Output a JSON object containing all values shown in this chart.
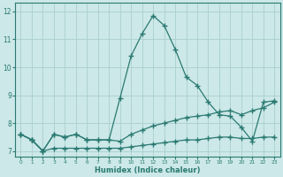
{
  "xlabel": "Humidex (Indice chaleur)",
  "x_values": [
    0,
    1,
    2,
    3,
    4,
    5,
    6,
    7,
    8,
    9,
    10,
    11,
    12,
    13,
    14,
    15,
    16,
    17,
    18,
    19,
    20,
    21,
    22,
    23
  ],
  "line1_bottom": [
    7.6,
    7.4,
    7.0,
    7.1,
    7.1,
    7.1,
    7.1,
    7.1,
    7.1,
    7.1,
    7.15,
    7.2,
    7.25,
    7.3,
    7.35,
    7.4,
    7.4,
    7.45,
    7.5,
    7.5,
    7.45,
    7.45,
    7.5,
    7.5
  ],
  "line2_mid": [
    7.6,
    7.4,
    7.0,
    7.6,
    7.5,
    7.6,
    7.4,
    7.4,
    7.4,
    7.35,
    7.6,
    7.75,
    7.9,
    8.0,
    8.1,
    8.2,
    8.25,
    8.3,
    8.4,
    8.45,
    8.3,
    8.45,
    8.55,
    8.75
  ],
  "line3_peak": [
    7.6,
    7.4,
    7.0,
    7.6,
    7.5,
    7.6,
    7.4,
    7.4,
    7.4,
    8.9,
    10.4,
    11.2,
    11.85,
    11.5,
    10.65,
    9.65,
    9.35,
    8.75,
    8.3,
    8.25,
    7.85,
    7.35,
    8.75,
    8.8
  ],
  "ylim": [
    6.8,
    12.3
  ],
  "xlim": [
    -0.5,
    23.5
  ],
  "yticks": [
    7,
    8,
    9,
    10,
    11,
    12
  ],
  "xticks": [
    0,
    1,
    2,
    3,
    4,
    5,
    6,
    7,
    8,
    9,
    10,
    11,
    12,
    13,
    14,
    15,
    16,
    17,
    18,
    19,
    20,
    21,
    22,
    23
  ],
  "line_color": "#2a7a72",
  "bg_color": "#cce8e8",
  "grid_color": "#aacece",
  "marker": "+",
  "marker_size": 4,
  "lw": 0.9
}
